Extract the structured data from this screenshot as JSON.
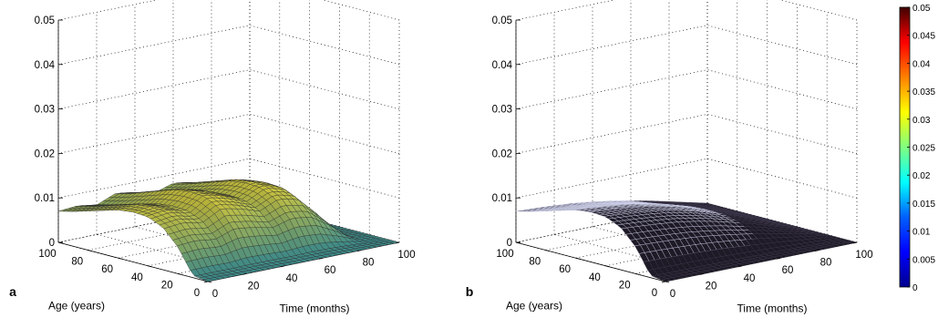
{
  "chart_data": [
    {
      "type": "surface",
      "panel_label": "a",
      "xlabel": "Time (months)",
      "ylabel": "Age (years)",
      "zlim": [
        0,
        0.05
      ],
      "x_ticks": [
        "0",
        "20",
        "40",
        "60",
        "80",
        "100"
      ],
      "y_ticks": [
        "0",
        "20",
        "40",
        "60",
        "80",
        "100"
      ],
      "z_ticks": [
        "0",
        "0.01",
        "0.02",
        "0.03",
        "0.04",
        "0.05"
      ],
      "grid": true,
      "surface_profile": {
        "age": [
          0,
          10,
          20,
          30,
          40,
          50,
          60,
          70,
          80,
          90,
          100
        ],
        "time": [
          0,
          10,
          20,
          30,
          40,
          50,
          60,
          70,
          80,
          90,
          100
        ],
        "age_profile": [
          0.0,
          0.0005,
          0.006,
          0.0095,
          0.011,
          0.0112,
          0.0108,
          0.0098,
          0.0088,
          0.0078,
          0.007
        ],
        "time_modulation": [
          1.0,
          1.05,
          0.95,
          1.2,
          1.1,
          0.95,
          1.15,
          1.05,
          0.6,
          0.05,
          0.0
        ]
      }
    },
    {
      "type": "surface",
      "panel_label": "b",
      "xlabel": "Time (months)",
      "ylabel": "Age (years)",
      "zlim": [
        0,
        0.05
      ],
      "x_ticks": [
        "0",
        "20",
        "40",
        "60",
        "80",
        "100"
      ],
      "y_ticks": [
        "0",
        "20",
        "40",
        "60",
        "80",
        "100"
      ],
      "z_ticks": [
        "0",
        "0.01",
        "0.02",
        "0.03",
        "0.04",
        "0.05"
      ],
      "grid": true,
      "surface_profile": {
        "age": [
          0,
          10,
          20,
          30,
          40,
          50,
          60,
          70,
          80,
          90,
          100
        ],
        "time": [
          0,
          10,
          20,
          30,
          40,
          50,
          60,
          70,
          80,
          90,
          100
        ],
        "age_profile": [
          0.0,
          0.0005,
          0.006,
          0.0095,
          0.011,
          0.0112,
          0.0108,
          0.0098,
          0.0088,
          0.0078,
          0.007
        ],
        "time_modulation": [
          1.0,
          0.97,
          0.93,
          0.88,
          0.8,
          0.7,
          0.58,
          0.45,
          0.3,
          0.15,
          0.0
        ]
      }
    }
  ],
  "colorbar": {
    "min": 0,
    "max": 0.05,
    "colormap": "jet",
    "tick_labels": [
      "0",
      "0.005",
      "0.01",
      "0.015",
      "0.02",
      "0.025",
      "0.03",
      "0.035",
      "0.04",
      "0.045",
      "0.05"
    ]
  },
  "colors": {
    "surface_a_high": "#e9e24a",
    "surface_a_low": "#4aa3a0",
    "surface_b": "#20182a",
    "mesh_light": "#d9d9f0",
    "axis": "#000000"
  }
}
